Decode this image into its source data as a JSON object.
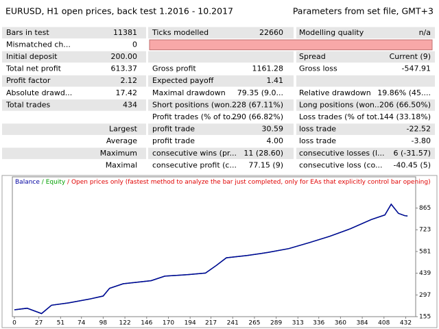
{
  "header": {
    "title": "EURUSD, H1 open prices, back test 1.2016 - 10.2017",
    "parameters": "Parameters from set file, GMT+3"
  },
  "table": {
    "rows": [
      [
        "Bars in test",
        "11381",
        "Ticks modelled",
        "22660",
        "Modelling quality",
        "n/a"
      ],
      [
        "Mismatched ch...",
        "0",
        null,
        null,
        null,
        null
      ],
      [
        "Initial deposit",
        "200.00",
        null,
        null,
        "Spread",
        "Current (9)"
      ],
      [
        "Total net profit",
        "613.37",
        "Gross profit",
        "1161.28",
        "Gross loss",
        "-547.91"
      ],
      [
        "Profit factor",
        "2.12",
        "Expected payoff",
        "1.41",
        null,
        null
      ],
      [
        "Absolute drawd...",
        "17.42",
        "Maximal drawdown",
        "79.35 (9.0...",
        "Relative drawdown",
        "19.86% (45...."
      ],
      [
        "Total trades",
        "434",
        "Short positions (won...",
        "228 (67.11%)",
        "Long positions (won...",
        "206 (66.50%)"
      ],
      [
        null,
        null,
        "Profit trades (% of to...",
        "290 (66.82%)",
        "Loss trades (% of tot...",
        "144 (33.18%)"
      ],
      [
        null,
        "Largest",
        "profit trade",
        "30.59",
        "loss trade",
        "-22.52"
      ],
      [
        null,
        "Average",
        "profit trade",
        "4.00",
        "loss trade",
        "-3.80"
      ],
      [
        null,
        "Maximum",
        "consecutive wins (pr...",
        "11 (28.60)",
        "consecutive losses (l...",
        "6 (-31.57)"
      ],
      [
        null,
        "Maximal",
        "consecutive profit (c...",
        "77.15 (9)",
        "consecutive loss (co...",
        "-40.45 (5)"
      ]
    ]
  },
  "chart_data": {
    "type": "line",
    "legend": {
      "separator": "/",
      "mode": "Open prices only (fastest method to analyze the bar just completed, only for EAs that explicitly control bar opening)",
      "mode_color": "#e00000"
    },
    "x": [
      0,
      14,
      30,
      41,
      60,
      83,
      98,
      105,
      120,
      151,
      166,
      192,
      211,
      223,
      234,
      257,
      280,
      303,
      326,
      348,
      371,
      394,
      409,
      416,
      424,
      431,
      434
    ],
    "series": [
      {
        "name": "Equity",
        "color": "#00a000",
        "values": [
          200,
          210,
          175,
          230,
          245,
          270,
          290,
          340,
          370,
          390,
          420,
          430,
          440,
          490,
          540,
          555,
          575,
          600,
          640,
          680,
          730,
          790,
          820,
          890,
          830,
          815,
          813
        ]
      },
      {
        "name": "Balance",
        "color": "#0000a0",
        "values": [
          200,
          210,
          175,
          230,
          245,
          270,
          290,
          340,
          370,
          390,
          420,
          430,
          440,
          490,
          540,
          555,
          575,
          600,
          640,
          680,
          730,
          790,
          820,
          890,
          830,
          815,
          813
        ]
      }
    ],
    "xlim": [
      0,
      443
    ],
    "xticks": [
      0,
      27,
      51,
      74,
      98,
      122,
      146,
      170,
      194,
      217,
      241,
      265,
      289,
      313,
      336,
      360,
      384,
      408,
      432
    ],
    "ylim": [
      155,
      1069
    ],
    "yticks": [
      155,
      297,
      439,
      581,
      723,
      865
    ]
  }
}
